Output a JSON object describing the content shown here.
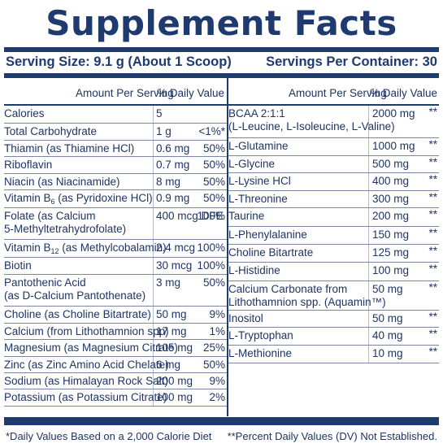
{
  "title": "Supplement Facts",
  "serving_size": "Serving Size: 9.1 g (About 1 Scoop)",
  "servings_per_container": "Servings Per Container: 30",
  "header": {
    "amount": "Amount Per Serving",
    "dv": "% Daily Value"
  },
  "left_rows": [
    {
      "name": "Calories",
      "amount": "5",
      "dv": ""
    },
    {
      "name": "Total Carbohydrate",
      "amount": "1 g",
      "dv": "<1%*"
    },
    {
      "name": "Thiamin (as Thiamine HCl)",
      "amount": "0.6 mg",
      "dv": "50%"
    },
    {
      "name": "Riboflavin",
      "amount": "0.7 mg",
      "dv": "50%"
    },
    {
      "name": "Niacin (as Niacinamide)",
      "amount": "8 mg",
      "dv": "50%"
    },
    {
      "name": "Vitamin B6 (as Pyridoxine HCl)",
      "amount": "0.9 mg",
      "dv": "50%"
    },
    {
      "name": "Folate (as Calcium\n5-Methyltetrahydrofolate)",
      "amount": "400 mcg DFE",
      "dv": "100%"
    },
    {
      "name": "Vitamin B12 (as Methylcobalamin)",
      "amount": "2.4 mcg",
      "dv": "100%"
    },
    {
      "name": "Biotin",
      "amount": "30 mcg",
      "dv": "100%"
    },
    {
      "name": "Pantothenic Acid\n(as D-Calcium Pantothenate)",
      "amount": "3 mg",
      "dv": "50%"
    },
    {
      "name": "Choline (as Choline Bitartrate)",
      "amount": "50 mg",
      "dv": "9%"
    },
    {
      "name": "Calcium (from Lithothamnion spp)",
      "amount": "17 mg",
      "dv": "1%"
    },
    {
      "name": "Magnesium (as Magnesium Citrate)",
      "amount": "105 mg",
      "dv": "25%"
    },
    {
      "name": "Zinc (as Zinc Amino Acid Chelate)",
      "amount": "6 mg",
      "dv": "50%"
    },
    {
      "name": "Sodium (as Himalayan Rock Salt)",
      "amount": "200 mg",
      "dv": "9%"
    },
    {
      "name": "Potassium (as Potassium Citrate)",
      "amount": "100 mg",
      "dv": "2%"
    }
  ],
  "right_rows": [
    {
      "name": "BCAA 2:1:1\n(L-Leucine, L-Isoleucine, L-Valine)",
      "amount": "2000 mg",
      "dv": "**"
    },
    {
      "name": "L-Glutamine",
      "amount": "1000 mg",
      "dv": "**"
    },
    {
      "name": "L-Glycine",
      "amount": "500 mg",
      "dv": "**"
    },
    {
      "name": "L-Lysine HCl",
      "amount": "400 mg",
      "dv": "**"
    },
    {
      "name": "L-Threonine",
      "amount": "300 mg",
      "dv": "**"
    },
    {
      "name": "Taurine",
      "amount": "200 mg",
      "dv": "**"
    },
    {
      "name": "L-Phenylalanine",
      "amount": "150 mg",
      "dv": "**"
    },
    {
      "name": "Choline Bitartrate",
      "amount": "125 mg",
      "dv": "**"
    },
    {
      "name": "L-Histidine",
      "amount": "100 mg",
      "dv": "**"
    },
    {
      "name": "Calcium Carbonate from\nLithothamnion spp. (Aquamin™)",
      "amount": "50 mg",
      "dv": "**"
    },
    {
      "name": "Inositol",
      "amount": "50 mg",
      "dv": "**"
    },
    {
      "name": "L-Tryptophan",
      "amount": "40 mg",
      "dv": "**"
    },
    {
      "name": "L-Methionine",
      "amount": "10 mg",
      "dv": "**"
    }
  ],
  "footer": {
    "daily_values_note": "*Daily Values Based on a 2,000 Calorie Diet",
    "not_established_note": "**Percent Daily Values (DV) Not Established."
  }
}
